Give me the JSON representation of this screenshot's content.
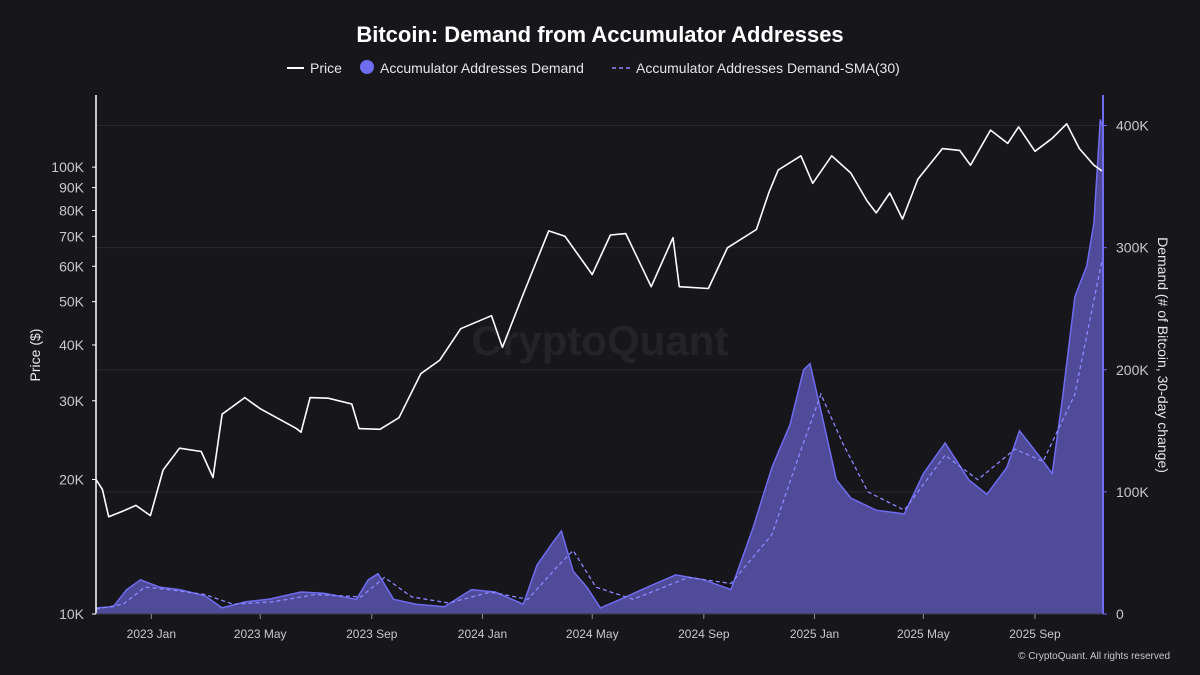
{
  "colors": {
    "background": "#17161b",
    "price": "#ffffff",
    "demand": "#6f6cf0",
    "demand_fill": "#524ea0",
    "sma": "#8a87ff",
    "grid": "#2a2930",
    "text": "#c8c8cc",
    "title": "#ffffff"
  },
  "watermark": "CryptoQuant",
  "copyright": "© CryptoQuant. All rights reserved",
  "chart_data": {
    "type": "line",
    "title": "Bitcoin: Demand from Accumulator Addresses",
    "legend": {
      "placement": "top-center",
      "items": [
        {
          "label": "Price",
          "marker": "line"
        },
        {
          "label": "Accumulator Addresses Demand",
          "marker": "dot"
        },
        {
          "label": "Accumulator Addresses Demand-SMA(30)",
          "marker": "dashed-line"
        }
      ]
    },
    "x_axis": {
      "type": "date",
      "range": [
        "2022-11-01",
        "2025-11-15"
      ],
      "ticks": [
        {
          "date": "2023-01-01",
          "label": "2023 Jan"
        },
        {
          "date": "2023-05-01",
          "label": "2023 May"
        },
        {
          "date": "2023-09-01",
          "label": "2023 Sep"
        },
        {
          "date": "2024-01-01",
          "label": "2024 Jan"
        },
        {
          "date": "2024-05-01",
          "label": "2024 May"
        },
        {
          "date": "2024-09-01",
          "label": "2024 Sep"
        },
        {
          "date": "2025-01-01",
          "label": "2025 Jan"
        },
        {
          "date": "2025-05-01",
          "label": "2025 May"
        },
        {
          "date": "2025-09-01",
          "label": "2025 Sep"
        }
      ]
    },
    "y_left": {
      "label": "Price ($)",
      "scale": "log",
      "range": [
        10000,
        145000
      ],
      "ticks": [
        {
          "value": 10000,
          "label": "10K"
        },
        {
          "value": 20000,
          "label": "20K"
        },
        {
          "value": 30000,
          "label": "30K"
        },
        {
          "value": 40000,
          "label": "40K"
        },
        {
          "value": 50000,
          "label": "50K"
        },
        {
          "value": 60000,
          "label": "60K"
        },
        {
          "value": 70000,
          "label": "70K"
        },
        {
          "value": 80000,
          "label": "80K"
        },
        {
          "value": 90000,
          "label": "90K"
        },
        {
          "value": 100000,
          "label": "100K"
        }
      ]
    },
    "y_right": {
      "label": "Demand (# of Bitcoin, 30-day change)",
      "scale": "linear",
      "range": [
        0,
        425000
      ],
      "ticks": [
        {
          "value": 0,
          "label": "0"
        },
        {
          "value": 100000,
          "label": "100K"
        },
        {
          "value": 200000,
          "label": "200K"
        },
        {
          "value": 300000,
          "label": "300K"
        },
        {
          "value": 400000,
          "label": "400K"
        }
      ]
    },
    "grid": true,
    "series": [
      {
        "name": "Price",
        "axis": "left",
        "style": "line",
        "points": [
          [
            "2022-11-01",
            20000
          ],
          [
            "2022-11-08",
            19000
          ],
          [
            "2022-11-15",
            16500
          ],
          [
            "2022-12-01",
            17000
          ],
          [
            "2022-12-15",
            17500
          ],
          [
            "2022-12-31",
            16600
          ],
          [
            "2023-01-14",
            21000
          ],
          [
            "2023-02-01",
            23500
          ],
          [
            "2023-02-25",
            23100
          ],
          [
            "2023-03-10",
            20200
          ],
          [
            "2023-03-20",
            28000
          ],
          [
            "2023-04-14",
            30500
          ],
          [
            "2023-05-01",
            28800
          ],
          [
            "2023-06-10",
            26000
          ],
          [
            "2023-06-15",
            25500
          ],
          [
            "2023-06-25",
            30500
          ],
          [
            "2023-07-15",
            30400
          ],
          [
            "2023-08-10",
            29500
          ],
          [
            "2023-08-18",
            26000
          ],
          [
            "2023-09-10",
            25900
          ],
          [
            "2023-10-01",
            27500
          ],
          [
            "2023-10-25",
            34500
          ],
          [
            "2023-11-15",
            37000
          ],
          [
            "2023-12-08",
            43500
          ],
          [
            "2024-01-11",
            46500
          ],
          [
            "2024-01-23",
            39500
          ],
          [
            "2024-02-15",
            52000
          ],
          [
            "2024-03-14",
            72000
          ],
          [
            "2024-04-01",
            70000
          ],
          [
            "2024-05-01",
            57500
          ],
          [
            "2024-05-21",
            70500
          ],
          [
            "2024-06-07",
            71000
          ],
          [
            "2024-07-05",
            54000
          ],
          [
            "2024-07-29",
            69500
          ],
          [
            "2024-08-05",
            54000
          ],
          [
            "2024-09-06",
            53500
          ],
          [
            "2024-09-27",
            66000
          ],
          [
            "2024-10-29",
            72500
          ],
          [
            "2024-11-12",
            88000
          ],
          [
            "2024-11-22",
            98500
          ],
          [
            "2024-12-17",
            106000
          ],
          [
            "2024-12-30",
            92000
          ],
          [
            "2025-01-20",
            106000
          ],
          [
            "2025-02-10",
            97000
          ],
          [
            "2025-02-28",
            84000
          ],
          [
            "2025-03-10",
            79000
          ],
          [
            "2025-03-25",
            87500
          ],
          [
            "2025-04-08",
            76500
          ],
          [
            "2025-04-25",
            94000
          ],
          [
            "2025-05-22",
            110000
          ],
          [
            "2025-06-10",
            109000
          ],
          [
            "2025-06-22",
            101000
          ],
          [
            "2025-07-14",
            121000
          ],
          [
            "2025-08-02",
            113000
          ],
          [
            "2025-08-14",
            123000
          ],
          [
            "2025-09-01",
            108500
          ],
          [
            "2025-09-20",
            116000
          ],
          [
            "2025-10-06",
            125000
          ],
          [
            "2025-10-20",
            110000
          ],
          [
            "2025-11-05",
            101000
          ],
          [
            "2025-11-14",
            98000
          ]
        ]
      },
      {
        "name": "Accumulator Addresses Demand",
        "axis": "right",
        "style": "area",
        "points": [
          [
            "2022-11-01",
            5000
          ],
          [
            "2022-11-20",
            6000
          ],
          [
            "2022-12-05",
            20000
          ],
          [
            "2022-12-20",
            28000
          ],
          [
            "2023-01-10",
            22000
          ],
          [
            "2023-02-01",
            20000
          ],
          [
            "2023-03-01",
            15000
          ],
          [
            "2023-03-20",
            5000
          ],
          [
            "2023-04-15",
            10000
          ],
          [
            "2023-05-10",
            12000
          ],
          [
            "2023-06-15",
            18000
          ],
          [
            "2023-07-10",
            17000
          ],
          [
            "2023-08-15",
            12000
          ],
          [
            "2023-08-28",
            28000
          ],
          [
            "2023-09-08",
            33000
          ],
          [
            "2023-09-25",
            12000
          ],
          [
            "2023-10-20",
            8000
          ],
          [
            "2023-11-20",
            6000
          ],
          [
            "2023-12-20",
            20000
          ],
          [
            "2024-01-15",
            18000
          ],
          [
            "2024-02-15",
            8000
          ],
          [
            "2024-03-01",
            40000
          ],
          [
            "2024-03-18",
            58000
          ],
          [
            "2024-03-28",
            68000
          ],
          [
            "2024-04-10",
            35000
          ],
          [
            "2024-04-25",
            22000
          ],
          [
            "2024-05-10",
            5000
          ],
          [
            "2024-06-01",
            12000
          ],
          [
            "2024-07-01",
            22000
          ],
          [
            "2024-08-01",
            32000
          ],
          [
            "2024-09-01",
            28000
          ],
          [
            "2024-10-01",
            20000
          ],
          [
            "2024-10-25",
            70000
          ],
          [
            "2024-11-15",
            120000
          ],
          [
            "2024-12-05",
            155000
          ],
          [
            "2024-12-20",
            200000
          ],
          [
            "2024-12-27",
            205000
          ],
          [
            "2025-01-10",
            160000
          ],
          [
            "2025-01-25",
            110000
          ],
          [
            "2025-02-10",
            95000
          ],
          [
            "2025-03-10",
            85000
          ],
          [
            "2025-04-10",
            82000
          ],
          [
            "2025-05-01",
            115000
          ],
          [
            "2025-05-25",
            140000
          ],
          [
            "2025-06-20",
            110000
          ],
          [
            "2025-07-10",
            98000
          ],
          [
            "2025-08-01",
            120000
          ],
          [
            "2025-08-15",
            150000
          ],
          [
            "2025-09-05",
            130000
          ],
          [
            "2025-09-20",
            115000
          ],
          [
            "2025-10-01",
            175000
          ],
          [
            "2025-10-15",
            260000
          ],
          [
            "2025-10-28",
            285000
          ],
          [
            "2025-11-05",
            320000
          ],
          [
            "2025-11-12",
            405000
          ],
          [
            "2025-11-14",
            400000
          ]
        ]
      },
      {
        "name": "Accumulator Addresses Demand-SMA(30)",
        "axis": "right",
        "style": "dashed-line",
        "points": [
          [
            "2022-11-01",
            4000
          ],
          [
            "2022-12-01",
            8000
          ],
          [
            "2022-12-25",
            22000
          ],
          [
            "2023-01-20",
            20000
          ],
          [
            "2023-03-01",
            16000
          ],
          [
            "2023-04-01",
            8000
          ],
          [
            "2023-05-15",
            10000
          ],
          [
            "2023-07-01",
            16000
          ],
          [
            "2023-08-20",
            14000
          ],
          [
            "2023-09-15",
            30000
          ],
          [
            "2023-10-15",
            14000
          ],
          [
            "2023-11-25",
            9000
          ],
          [
            "2024-01-10",
            18000
          ],
          [
            "2024-02-20",
            12000
          ],
          [
            "2024-03-25",
            40000
          ],
          [
            "2024-04-10",
            52000
          ],
          [
            "2024-05-05",
            22000
          ],
          [
            "2024-06-15",
            12000
          ],
          [
            "2024-08-15",
            30000
          ],
          [
            "2024-10-01",
            25000
          ],
          [
            "2024-11-15",
            65000
          ],
          [
            "2024-12-15",
            130000
          ],
          [
            "2025-01-08",
            180000
          ],
          [
            "2025-02-01",
            140000
          ],
          [
            "2025-03-01",
            100000
          ],
          [
            "2025-04-10",
            85000
          ],
          [
            "2025-05-25",
            130000
          ],
          [
            "2025-06-30",
            110000
          ],
          [
            "2025-08-10",
            135000
          ],
          [
            "2025-09-10",
            125000
          ],
          [
            "2025-10-15",
            180000
          ],
          [
            "2025-11-14",
            290000
          ]
        ]
      }
    ]
  }
}
